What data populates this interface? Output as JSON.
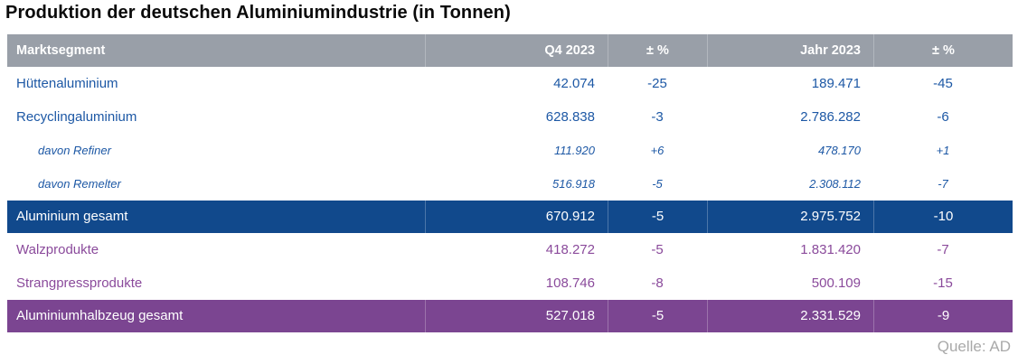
{
  "title": "Produktion der deutschen Aluminiumindustrie (in Tonnen)",
  "source": "Quelle: AD",
  "colors": {
    "header-bg": "#999fa8",
    "blue-text": "#1d58a5",
    "blue-total-bg": "#11498c",
    "purple-text": "#8a4a9b",
    "purple-total-bg": "#7b4591",
    "source-text": "#a9a9a9",
    "title-text": "#0a0a0a"
  },
  "chart_data": {
    "type": "table",
    "title": "Produktion der deutschen Aluminiumindustrie (in Tonnen)",
    "columns": [
      "Marktsegment",
      "Q4 2023",
      "± %",
      "Jahr 2023",
      "± %"
    ],
    "rows": [
      {
        "label": "Hüttenaluminium",
        "q4": "42.074",
        "q4_pct": "-25",
        "year": "189.471",
        "year_pct": "-45",
        "style": "blue"
      },
      {
        "label": "Recyclingaluminium",
        "q4": "628.838",
        "q4_pct": "-3",
        "year": "2.786.282",
        "year_pct": "-6",
        "style": "blue"
      },
      {
        "label": "davon Refiner",
        "q4": "111.920",
        "q4_pct": "+6",
        "year": "478.170",
        "year_pct": "+1",
        "style": "blue-sub"
      },
      {
        "label": "davon Remelter",
        "q4": "516.918",
        "q4_pct": "-5",
        "year": "2.308.112",
        "year_pct": "-7",
        "style": "blue-sub"
      },
      {
        "label": "Aluminium gesamt",
        "q4": "670.912",
        "q4_pct": "-5",
        "year": "2.975.752",
        "year_pct": "-10",
        "style": "blue-total"
      },
      {
        "label": "Walzprodukte",
        "q4": "418.272",
        "q4_pct": "-5",
        "year": "1.831.420",
        "year_pct": "-7",
        "style": "purple"
      },
      {
        "label": "Strangpressprodukte",
        "q4": "108.746",
        "q4_pct": "-8",
        "year": "500.109",
        "year_pct": "-15",
        "style": "purple"
      },
      {
        "label": "Aluminiumhalbzeug gesamt",
        "q4": "527.018",
        "q4_pct": "-5",
        "year": "2.331.529",
        "year_pct": "-9",
        "style": "purple-total"
      }
    ]
  }
}
